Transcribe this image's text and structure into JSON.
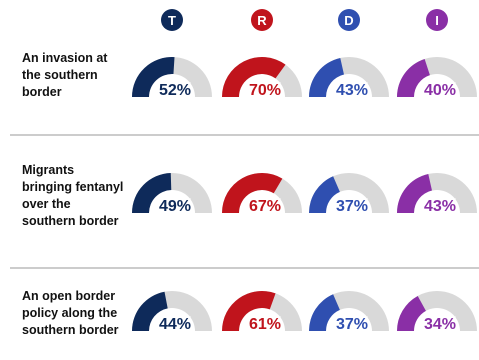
{
  "chart_data": {
    "type": "gauge",
    "categories": [
      "An invasion at the southern border",
      "Migrants bringing fentanyl over the southern border",
      "An open border policy along the southern border"
    ],
    "series": [
      {
        "name": "T",
        "color": "#0e2a5a",
        "values": [
          52,
          49,
          44
        ],
        "value_labels": [
          "52%",
          "49%",
          "44%"
        ]
      },
      {
        "name": "R",
        "color": "#c0141c",
        "values": [
          70,
          67,
          61
        ],
        "value_labels": [
          "70%",
          "67%",
          "61%"
        ]
      },
      {
        "name": "D",
        "color": "#2f4fb0",
        "values": [
          43,
          37,
          37
        ],
        "value_labels": [
          "43%",
          "37%",
          "37%"
        ]
      },
      {
        "name": "I",
        "color": "#8a2fa6",
        "values": [
          40,
          43,
          34
        ],
        "value_labels": [
          "40%",
          "43%",
          "34%"
        ]
      }
    ],
    "ylim": [
      0,
      100
    ]
  }
}
